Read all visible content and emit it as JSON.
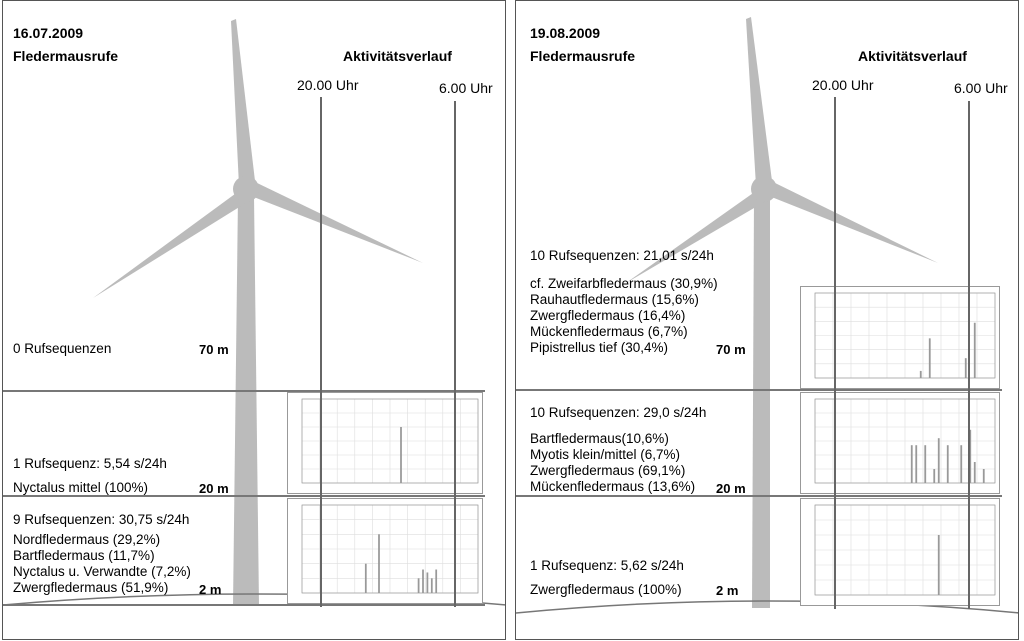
{
  "panels": [
    {
      "date": "16.07.2009",
      "heading": "Fledermausrufe",
      "activity_title": "Aktivitätsverlauf",
      "time_start": "20.00 Uhr",
      "time_end": "6.00 Uhr",
      "levels": [
        {
          "height": "70 m",
          "summary": "0 Rufsequenzen",
          "species": []
        },
        {
          "height": "20 m",
          "summary": "1 Rufsequenz: 5,54 s/24h",
          "species": [
            "Nyctalus mittel (100%)"
          ]
        },
        {
          "height": "2 m",
          "summary": "9 Rufsequenzen: 30,75 s/24h",
          "species": [
            "Nordfledermaus (29,2%)",
            "Bartfledermaus (11,7%)",
            "Nyctalus u. Verwandte (7,2%)",
            "Zwergfledermaus (51,9%)"
          ]
        }
      ]
    },
    {
      "date": "19.08.2009",
      "heading": "Fledermausrufe",
      "activity_title": "Aktivitätsverlauf",
      "time_start": "20.00 Uhr",
      "time_end": "6.00 Uhr",
      "levels": [
        {
          "height": "70 m",
          "summary": "10 Rufsequenzen: 21,01 s/24h",
          "species": [
            "cf. Zweifarbfledermaus (30,9%)",
            "Rauhautfledermaus (15,6%)",
            "Zwergfledermaus (16,4%)",
            "Mückenfledermaus (6,7%)",
            "Pipistrellus tief (30,4%)"
          ]
        },
        {
          "height": "20 m",
          "summary": "10 Rufsequenzen: 29,0 s/24h",
          "species": [
            "Bartfledermaus(10,6%)",
            "Myotis klein/mittel (6,7%)",
            "Zwergfledermaus (69,1%)",
            "Mückenfledermaus (13,6%)"
          ]
        },
        {
          "height": "2 m",
          "summary": "1 Rufsequenz: 5,62 s/24h",
          "species": [
            "Zwergfledermaus (100%)"
          ]
        }
      ]
    }
  ],
  "activity_charts": [
    {
      "panel": 0,
      "level": "20 m",
      "bars": [
        0,
        0,
        0,
        0,
        0,
        0,
        0,
        0,
        0,
        0,
        0,
        0,
        0,
        0,
        0,
        0,
        0,
        0,
        0,
        0,
        0,
        0,
        4,
        0,
        0,
        0,
        0,
        0,
        0,
        0,
        0,
        0,
        0,
        0,
        0,
        0,
        0,
        0,
        0,
        0
      ]
    },
    {
      "panel": 0,
      "level": "2 m",
      "bars": [
        0,
        0,
        0,
        0,
        0,
        0,
        0,
        0,
        0,
        0,
        0,
        0,
        0,
        0,
        2,
        0,
        0,
        4,
        0,
        0,
        0,
        0,
        0,
        0,
        0,
        0,
        1,
        1.6,
        1.4,
        1,
        1.6,
        0,
        0,
        0,
        0,
        0,
        0,
        0,
        0,
        0
      ]
    },
    {
      "panel": 1,
      "level": "70 m",
      "bars": [
        0,
        0,
        0,
        0,
        0,
        0,
        0,
        0,
        0,
        0,
        0,
        0,
        0,
        0,
        0,
        0,
        0,
        0,
        0,
        0,
        0,
        0,
        0,
        0.5,
        0,
        2.8,
        0,
        0,
        0,
        0,
        0,
        0,
        0,
        1.4,
        0,
        3.9,
        0,
        0,
        0,
        0
      ]
    },
    {
      "panel": 1,
      "level": "20 m",
      "bars": [
        0,
        0,
        0,
        0,
        0,
        0,
        0,
        0,
        0,
        0,
        0,
        0,
        0,
        0,
        0,
        0,
        0,
        0,
        0,
        0,
        0,
        2.7,
        2.7,
        0,
        2.7,
        0,
        1,
        3.2,
        0,
        2.7,
        0,
        0,
        2.7,
        0,
        3.8,
        1.5,
        0,
        1,
        0,
        0
      ]
    },
    {
      "panel": 1,
      "level": "2 m",
      "bars": [
        0,
        0,
        0,
        0,
        0,
        0,
        0,
        0,
        0,
        0,
        0,
        0,
        0,
        0,
        0,
        0,
        0,
        0,
        0,
        0,
        0,
        0,
        0,
        0,
        0,
        0,
        0,
        4,
        0,
        0,
        0,
        0,
        0,
        0,
        0,
        0,
        0,
        0,
        0,
        0
      ]
    }
  ]
}
